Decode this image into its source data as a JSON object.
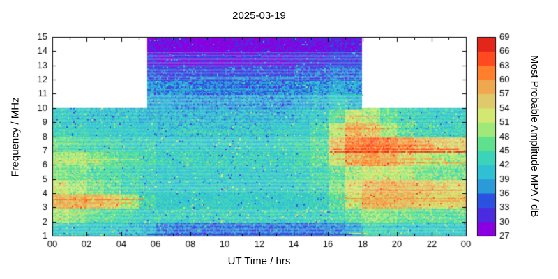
{
  "chart_data": {
    "type": "heatmap",
    "title": "2025-03-19",
    "xlabel": "UT Time / hrs",
    "ylabel": "Frequency / MHz",
    "x_range": [
      0,
      24
    ],
    "x_major_ticks": [
      0,
      2,
      4,
      6,
      8,
      10,
      12,
      14,
      16,
      18,
      20,
      22,
      24
    ],
    "x_tick_labels": [
      "00",
      "02",
      "04",
      "06",
      "08",
      "10",
      "12",
      "14",
      "16",
      "18",
      "20",
      "22",
      "00"
    ],
    "y_range": [
      1,
      15
    ],
    "y_ticks": [
      1,
      2,
      3,
      4,
      5,
      6,
      7,
      8,
      9,
      10,
      11,
      12,
      13,
      14,
      15
    ],
    "y_tick_labels": [
      "1",
      "2",
      "3",
      "4",
      "5",
      "6",
      "7",
      "8",
      "9",
      "10",
      "11",
      "12",
      "13",
      "14",
      "15"
    ],
    "colorbar": {
      "label": "Most Probable Amplitude MPA / dB",
      "min": 27,
      "max": 69,
      "step": 3,
      "tick_labels": [
        "27",
        "30",
        "33",
        "36",
        "39",
        "42",
        "45",
        "48",
        "51",
        "54",
        "57",
        "60",
        "63",
        "66",
        "69"
      ],
      "palette": [
        "#8b00e0",
        "#4b2be0",
        "#2a52e0",
        "#2b9ad9",
        "#2fc0d4",
        "#3bd4b8",
        "#5ee08c",
        "#9fe87a",
        "#d2e870",
        "#e0c96a",
        "#f0a850",
        "#ff7f2b",
        "#ff4a1f",
        "#e32619"
      ]
    },
    "coverage": {
      "full_band_mhz": [
        1,
        10
      ],
      "upper_band_mhz": [
        10,
        15
      ],
      "upper_band_hours": [
        5.5,
        18
      ]
    },
    "hours": [
      0,
      1,
      2,
      3,
      4,
      5,
      6,
      7,
      8,
      9,
      10,
      11,
      12,
      13,
      14,
      15,
      16,
      17,
      18,
      19,
      20,
      21,
      22,
      23
    ],
    "freq_bands": [
      [
        1,
        2
      ],
      [
        2,
        3
      ],
      [
        3,
        4
      ],
      [
        4,
        5
      ],
      [
        5,
        6
      ],
      [
        6,
        7
      ],
      [
        7,
        8
      ],
      [
        8,
        9
      ],
      [
        9,
        10
      ],
      [
        10,
        11
      ],
      [
        11,
        12
      ],
      [
        12,
        13
      ],
      [
        13,
        14
      ],
      [
        14,
        15
      ]
    ],
    "matrix": [
      [
        42,
        42,
        42,
        41,
        41,
        40,
        37,
        36,
        36,
        36,
        36,
        36,
        36,
        36,
        36,
        36,
        37,
        39,
        44,
        43,
        42,
        42,
        42,
        42
      ],
      [
        50,
        48,
        46,
        45,
        44,
        43,
        43,
        43,
        43,
        43,
        43,
        43,
        43,
        43,
        43,
        43,
        44,
        46,
        49,
        48,
        47,
        46,
        46,
        46
      ],
      [
        57,
        58,
        56,
        55,
        50,
        44,
        42,
        42,
        42,
        42,
        42,
        42,
        42,
        42,
        42,
        43,
        46,
        52,
        58,
        58,
        57,
        55,
        54,
        55
      ],
      [
        52,
        50,
        48,
        46,
        44,
        43,
        42,
        42,
        42,
        42,
        42,
        42,
        42,
        42,
        43,
        44,
        48,
        54,
        57,
        58,
        57,
        56,
        55,
        54
      ],
      [
        48,
        47,
        46,
        45,
        44,
        43,
        42,
        42,
        42,
        42,
        42,
        42,
        42,
        42,
        43,
        44,
        46,
        50,
        52,
        52,
        50,
        48,
        47,
        47
      ],
      [
        50,
        50,
        48,
        46,
        45,
        44,
        43,
        43,
        43,
        43,
        43,
        43,
        43,
        43,
        44,
        46,
        52,
        58,
        60,
        58,
        55,
        52,
        50,
        50
      ],
      [
        46,
        45,
        44,
        44,
        43,
        43,
        42,
        42,
        42,
        42,
        42,
        42,
        42,
        43,
        44,
        46,
        56,
        62,
        63,
        62,
        60,
        58,
        56,
        55
      ],
      [
        43,
        43,
        42,
        42,
        42,
        42,
        41,
        41,
        41,
        41,
        41,
        41,
        41,
        42,
        42,
        44,
        52,
        58,
        56,
        50,
        46,
        44,
        43,
        43
      ],
      [
        42,
        42,
        41,
        41,
        41,
        40,
        40,
        40,
        40,
        40,
        40,
        40,
        40,
        40,
        41,
        42,
        46,
        52,
        50,
        46,
        44,
        43,
        42,
        42
      ],
      [
        null,
        null,
        null,
        null,
        null,
        39,
        39,
        38,
        38,
        38,
        38,
        38,
        38,
        38,
        39,
        40,
        42,
        40,
        null,
        null,
        null,
        null,
        null,
        null
      ],
      [
        null,
        null,
        null,
        null,
        null,
        37,
        37,
        37,
        36,
        36,
        36,
        36,
        36,
        37,
        37,
        38,
        39,
        38,
        null,
        null,
        null,
        null,
        null,
        null
      ],
      [
        null,
        null,
        null,
        null,
        null,
        35,
        34,
        34,
        34,
        33,
        34,
        34,
        34,
        34,
        35,
        35,
        36,
        36,
        null,
        null,
        null,
        null,
        null,
        null
      ],
      [
        null,
        null,
        null,
        null,
        null,
        32,
        31,
        31,
        30,
        30,
        30,
        31,
        31,
        31,
        32,
        32,
        33,
        33,
        null,
        null,
        null,
        null,
        null,
        null
      ],
      [
        null,
        null,
        null,
        null,
        null,
        30,
        29,
        29,
        28,
        28,
        29,
        29,
        29,
        29,
        30,
        30,
        31,
        31,
        null,
        null,
        null,
        null,
        null,
        null
      ]
    ],
    "streaks": [
      {
        "f": 3.55,
        "t": [
          0,
          5.3
        ],
        "db": 61
      },
      {
        "f": 3.3,
        "t": [
          0,
          4.5
        ],
        "db": 58
      },
      {
        "f": 3.8,
        "t": [
          0.5,
          3
        ],
        "db": 57
      },
      {
        "f": 2.6,
        "t": [
          0,
          2.5
        ],
        "db": 53
      },
      {
        "f": 6.2,
        "t": [
          0,
          2.8
        ],
        "db": 54
      },
      {
        "f": 6.35,
        "t": [
          0.2,
          5
        ],
        "db": 52
      },
      {
        "f": 7.5,
        "t": [
          0,
          1.5
        ],
        "db": 50
      },
      {
        "f": 4.1,
        "t": [
          0,
          1.2
        ],
        "db": 52
      },
      {
        "f": 8.3,
        "t": [
          7,
          14
        ],
        "db": 45
      },
      {
        "f": 3.6,
        "t": [
          16.5,
          24
        ],
        "db": 60
      },
      {
        "f": 3.45,
        "t": [
          17.5,
          23.5
        ],
        "db": 58
      },
      {
        "f": 4.2,
        "t": [
          18,
          23.8
        ],
        "db": 59
      },
      {
        "f": 4.45,
        "t": [
          19,
          23
        ],
        "db": 56
      },
      {
        "f": 6.4,
        "t": [
          16.5,
          22.5
        ],
        "db": 58
      },
      {
        "f": 6.15,
        "t": [
          17,
          24
        ],
        "db": 60
      },
      {
        "f": 6.9,
        "t": [
          16,
          24
        ],
        "db": 66
      },
      {
        "f": 7.1,
        "t": [
          16.3,
          23.5
        ],
        "db": 64
      },
      {
        "f": 7.35,
        "t": [
          17,
          22
        ],
        "db": 62
      },
      {
        "f": 7.6,
        "t": [
          17.5,
          21
        ],
        "db": 58
      },
      {
        "f": 8.55,
        "t": [
          16.5,
          19.5
        ],
        "db": 61
      },
      {
        "f": 8.8,
        "t": [
          17,
          19
        ],
        "db": 57
      },
      {
        "f": 9.4,
        "t": [
          16.5,
          19
        ],
        "db": 56
      },
      {
        "f": 9.15,
        "t": [
          17,
          18.5
        ],
        "db": 54
      },
      {
        "f": 5.3,
        "t": [
          17.5,
          20
        ],
        "db": 52
      },
      {
        "f": 2.8,
        "t": [
          18,
          22
        ],
        "db": 50
      },
      {
        "f": 1.15,
        "t": [
          17.2,
          18.2
        ],
        "db": 50
      },
      {
        "f": 1.1,
        "t": [
          5.5,
          17.3
        ],
        "db": 34
      },
      {
        "f": 12.1,
        "t": [
          8,
          14
        ],
        "db": 40
      },
      {
        "f": 11.3,
        "t": [
          6,
          16
        ],
        "db": 39
      },
      {
        "f": 13.6,
        "t": [
          7,
          12
        ],
        "db": 34
      },
      {
        "f": 10.9,
        "t": [
          16.8,
          17.9
        ],
        "db": 44
      }
    ]
  }
}
